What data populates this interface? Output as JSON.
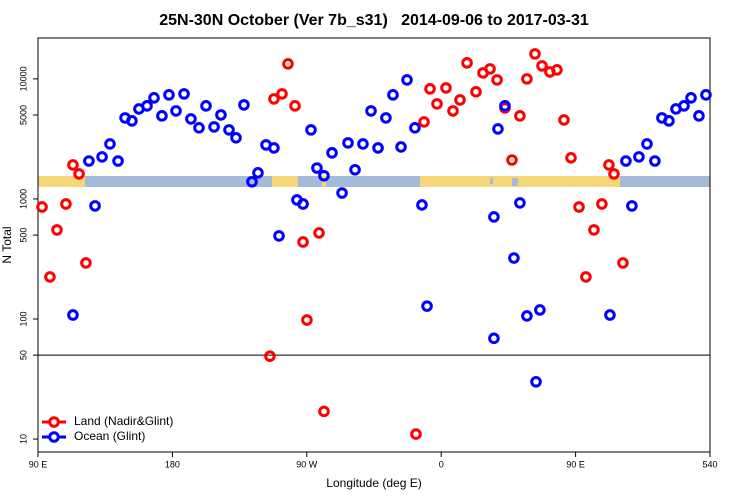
{
  "chart_data": {
    "type": "scatter",
    "title": "25N-30N October (Ver 7b_s31)   2014-09-06 to 2017-03-31",
    "xlabel": "Longitude (deg E)",
    "ylabel": "N Total",
    "xlim": [
      90,
      540
    ],
    "ylim": [
      7.8,
      21900
    ],
    "ylog": true,
    "xticks": [
      {
        "value": 90,
        "label": "90 E"
      },
      180,
      {
        "value": 270,
        "label": "90 W"
      },
      {
        "value": 360,
        "label": "0"
      },
      {
        "value": 450,
        "label": "90 E"
      },
      540
    ],
    "yticks": [
      10,
      50,
      100,
      500,
      1000,
      5000,
      10000
    ],
    "hline": 50,
    "legend": "lower left",
    "series": [
      {
        "name": "Land (Nadir&Glint)",
        "color": "#ff0000",
        "x": [
          92.7,
          98,
          102.7,
          108.7,
          113.4,
          117.5,
          122.1,
          245.3,
          248,
          253.4,
          257.4,
          262.1,
          267.5,
          270.1,
          278.2,
          281.5,
          343.1,
          348.5,
          352.5,
          357.2,
          363.2,
          367.9,
          372.6,
          377.3,
          383.3,
          388,
          392.7,
          397.4,
          402.7,
          407.4,
          412.7,
          417.4,
          422.8,
          427.5,
          432.8,
          437.5,
          442.2,
          446.9,
          452.3,
          456.9,
          462.3,
          467.6,
          472.3,
          475.7,
          481.7
        ],
        "values": [
          857,
          224,
          552,
          908,
          1920,
          1616,
          293,
          49,
          6810,
          7500,
          13340,
          5960,
          438,
          98,
          521,
          17,
          11,
          4380,
          8260,
          6190,
          8410,
          5410,
          6680,
          13600,
          7800,
          11220,
          12110,
          9810,
          5730,
          2110,
          4920,
          10000,
          16150,
          12830,
          11430,
          11890,
          4550,
          2200,
          857,
          224,
          552,
          908,
          1920,
          1616,
          293
        ]
      },
      {
        "name": "Ocean (Glint)",
        "color": "#0000ff",
        "x": [
          113.4,
          124.1,
          128.2,
          132.9,
          138.2,
          143.6,
          148.3,
          152.9,
          157.6,
          163,
          167.7,
          173,
          177.7,
          182.4,
          187.8,
          192.4,
          197.8,
          202.5,
          207.9,
          212.5,
          217.9,
          222.6,
          227.9,
          233.3,
          237.3,
          242.7,
          248,
          251.4,
          263.4,
          267.5,
          272.8,
          276.8,
          281.5,
          286.9,
          293.6,
          297.6,
          302.3,
          307.6,
          313,
          317.7,
          323,
          327.7,
          333.1,
          337.1,
          342.4,
          347.1,
          350.5,
          395.3,
          395.3,
          398,
          402.7,
          408.7,
          412.7,
          417.4,
          423.5,
          426.1,
          473,
          483.7,
          487.7,
          492.4,
          497.8,
          503.1,
          507.8,
          512.5,
          517.2,
          522.6,
          527.3,
          532.6,
          537.3
        ],
        "values": [
          108,
          2070,
          875,
          2240,
          2870,
          2070,
          4730,
          4470,
          5620,
          5960,
          6950,
          4920,
          7360,
          5410,
          7500,
          4640,
          3910,
          5960,
          3980,
          5010,
          3760,
          3230,
          6070,
          1390,
          1650,
          2820,
          2660,
          492,
          981,
          908,
          3760,
          1810,
          1560,
          2420,
          1120,
          2930,
          1750,
          2870,
          5410,
          2660,
          4730,
          7360,
          2710,
          9810,
          3910,
          891,
          128,
          69,
          708,
          3830,
          5960,
          322,
          927,
          106,
          30,
          119,
          108,
          2070,
          875,
          2240,
          2870,
          2070,
          4730,
          4470,
          5620,
          5960,
          6950,
          4920,
          7360
        ]
      }
    ]
  }
}
